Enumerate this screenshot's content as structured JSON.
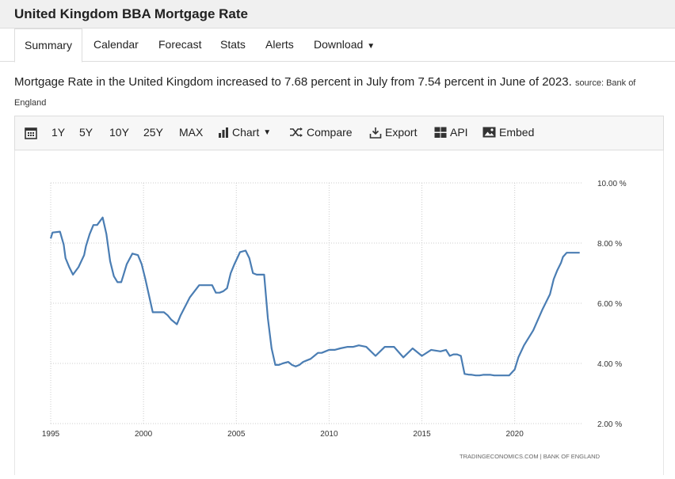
{
  "header": {
    "title": "United Kingdom BBA Mortgage Rate"
  },
  "tabs": [
    {
      "label": "Summary"
    },
    {
      "label": "Calendar"
    },
    {
      "label": "Forecast"
    },
    {
      "label": "Stats"
    },
    {
      "label": "Alerts"
    },
    {
      "label": "Download"
    }
  ],
  "summary": {
    "text": "Mortgage Rate in the United Kingdom increased to 7.68 percent in July from 7.54 percent in June of 2023.",
    "source": "source: Bank of England"
  },
  "toolbar": {
    "ranges": [
      "1Y",
      "5Y",
      "10Y",
      "25Y",
      "MAX"
    ],
    "chart_label": "Chart",
    "compare_label": "Compare",
    "export_label": "Export",
    "api_label": "API",
    "embed_label": "Embed",
    "icons": [
      "calendar-icon",
      "bar-chart-icon",
      "compare-icon",
      "export-icon",
      "api-icon",
      "embed-icon"
    ]
  },
  "colors": {
    "line": "#4a7db3",
    "grid": "#cccccc"
  },
  "credit": "TRADINGECONOMICS.COM | BANK OF ENGLAND",
  "chart_data": {
    "type": "line",
    "title": "",
    "xlabel": "",
    "ylabel": "",
    "xlim": [
      1995.0,
      2023.6
    ],
    "ylim": [
      2,
      10
    ],
    "yticks": [
      "2.00 %",
      "4.00 %",
      "6.00 %",
      "8.00 %",
      "10.00 %"
    ],
    "xticks": [
      "1995",
      "2000",
      "2005",
      "2010",
      "2015",
      "2020"
    ],
    "grid": "dotted",
    "series": [
      {
        "name": "",
        "x": [
          1995.0,
          1995.1,
          1995.5,
          1995.7,
          1995.8,
          1996.0,
          1996.2,
          1996.5,
          1996.8,
          1996.9,
          1997.1,
          1997.3,
          1997.5,
          1997.8,
          1998.0,
          1998.2,
          1998.4,
          1998.6,
          1998.8,
          1998.9,
          1999.1,
          1999.4,
          1999.7,
          1999.9,
          2000.1,
          2000.5,
          2000.9,
          2001.1,
          2001.3,
          2001.5,
          2001.8,
          2002.0,
          2002.5,
          2003.0,
          2003.2,
          2003.5,
          2003.7,
          2003.9,
          2004.1,
          2004.3,
          2004.5,
          2004.7,
          2004.9,
          2005.2,
          2005.5,
          2005.7,
          2005.9,
          2006.1,
          2006.5,
          2006.7,
          2006.9,
          2007.1,
          2007.3,
          2007.5,
          2007.8,
          2008.0,
          2008.2,
          2008.4,
          2008.6,
          2008.8,
          2009.0,
          2009.2,
          2009.4,
          2009.6,
          2009.8,
          2010.0,
          2010.3,
          2010.6,
          2011.0,
          2011.3,
          2011.6,
          2012.0,
          2012.5,
          2013.0,
          2013.5,
          2014.0,
          2014.5,
          2015.0,
          2015.5,
          2016.0,
          2016.3,
          2016.5,
          2016.7,
          2016.9,
          2017.1,
          2017.3,
          2017.5,
          2017.7,
          2017.9,
          2018.1,
          2018.3,
          2018.5,
          2018.7,
          2018.9,
          2019.1,
          2019.4,
          2019.7,
          2020.0,
          2020.2,
          2020.5,
          2021.0,
          2021.5,
          2021.9,
          2022.1,
          2022.3,
          2022.5,
          2022.6,
          2022.8,
          2022.9,
          2023.0,
          2023.2,
          2023.4,
          2023.5
        ],
        "values": [
          8.15,
          8.35,
          8.38,
          7.95,
          7.5,
          7.2,
          6.95,
          7.2,
          7.6,
          7.9,
          8.3,
          8.6,
          8.6,
          8.85,
          8.3,
          7.4,
          6.9,
          6.7,
          6.7,
          6.9,
          7.3,
          7.65,
          7.6,
          7.3,
          6.8,
          5.7,
          5.7,
          5.7,
          5.6,
          5.45,
          5.3,
          5.6,
          6.2,
          6.6,
          6.6,
          6.6,
          6.6,
          6.35,
          6.35,
          6.4,
          6.5,
          7.0,
          7.3,
          7.7,
          7.75,
          7.5,
          7.0,
          6.95,
          6.95,
          5.5,
          4.5,
          3.95,
          3.95,
          4.0,
          4.05,
          3.95,
          3.9,
          3.95,
          4.05,
          4.1,
          4.15,
          4.25,
          4.35,
          4.35,
          4.4,
          4.45,
          4.45,
          4.5,
          4.55,
          4.55,
          4.6,
          4.55,
          4.25,
          4.55,
          4.55,
          4.2,
          4.5,
          4.25,
          4.45,
          4.4,
          4.45,
          4.25,
          4.3,
          4.3,
          4.25,
          3.65,
          3.63,
          3.62,
          3.6,
          3.6,
          3.62,
          3.62,
          3.62,
          3.6,
          3.6,
          3.6,
          3.6,
          3.8,
          4.2,
          4.6,
          5.1,
          5.8,
          6.3,
          6.8,
          7.1,
          7.35,
          7.54,
          7.68,
          7.68,
          7.68,
          7.68,
          7.68,
          7.68
        ]
      }
    ]
  }
}
